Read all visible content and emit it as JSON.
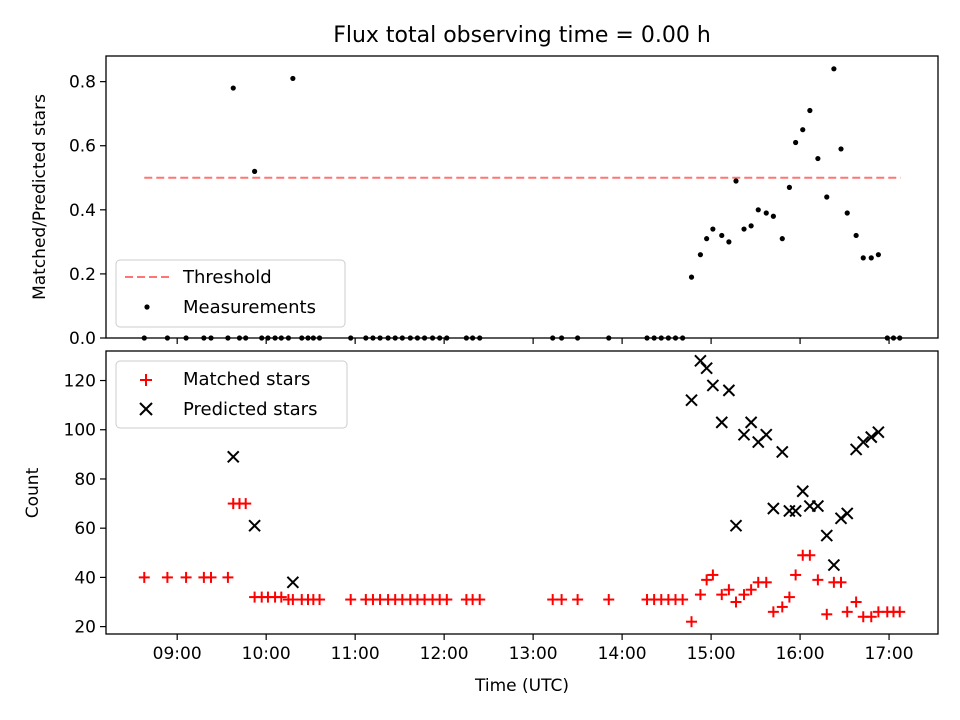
{
  "chart_data": [
    {
      "type": "scatter",
      "title": "Flux total observing time = 0.00 h",
      "xlabel": "",
      "ylabel": "Matched/Predicted stars",
      "xlim": [
        8.2,
        17.55
      ],
      "ylim": [
        0,
        0.88
      ],
      "x_unit": "hours UTC",
      "yticks": [
        0.0,
        0.2,
        0.4,
        0.6,
        0.8
      ],
      "ytick_labels": [
        "0.0",
        "0.2",
        "0.4",
        "0.6",
        "0.8"
      ],
      "xticks": [
        9,
        10,
        11,
        12,
        13,
        14,
        15,
        16,
        17
      ],
      "xtick_labels_shown": false,
      "legend_position": "lower-left",
      "threshold": {
        "name": "Threshold",
        "value": 0.5,
        "x": [
          8.63,
          17.13
        ],
        "color": "#ff7575",
        "style": "dashed"
      },
      "series": [
        {
          "name": "Measurements",
          "color": "#000000",
          "marker": "dot",
          "x": [
            8.63,
            8.89,
            9.1,
            9.3,
            9.38,
            9.57,
            9.63,
            9.7,
            9.77,
            9.87,
            9.95,
            10.02,
            10.1,
            10.17,
            10.25,
            10.3,
            10.4,
            10.47,
            10.53,
            10.6,
            10.95,
            11.12,
            11.2,
            11.28,
            11.37,
            11.45,
            11.53,
            11.62,
            11.7,
            11.78,
            11.87,
            11.95,
            12.03,
            12.25,
            12.32,
            12.4,
            13.22,
            13.32,
            13.5,
            13.85,
            14.28,
            14.36,
            14.44,
            14.52,
            14.6,
            14.68,
            14.78,
            14.88,
            14.95,
            15.02,
            15.12,
            15.2,
            15.28,
            15.37,
            15.45,
            15.53,
            15.62,
            15.7,
            15.8,
            15.88,
            15.95,
            16.03,
            16.11,
            16.2,
            16.3,
            16.38,
            16.46,
            16.53,
            16.63,
            16.71,
            16.8,
            16.88,
            16.98,
            17.05,
            17.12
          ],
          "y": [
            0,
            0,
            0,
            0,
            0,
            0,
            0.78,
            0,
            0,
            0.52,
            0,
            0,
            0,
            0,
            0,
            0.81,
            0,
            0,
            0,
            0,
            0,
            0,
            0,
            0,
            0,
            0,
            0,
            0,
            0,
            0,
            0,
            0,
            0,
            0,
            0,
            0,
            0,
            0,
            0,
            0,
            0,
            0,
            0,
            0,
            0,
            0,
            0.19,
            0.26,
            0.31,
            0.34,
            0.32,
            0.3,
            0.49,
            0.34,
            0.35,
            0.4,
            0.39,
            0.38,
            0.31,
            0.47,
            0.61,
            0.65,
            0.71,
            0.56,
            0.44,
            0.84,
            0.59,
            0.39,
            0.32,
            0.25,
            0.25,
            0.26,
            0,
            0,
            0
          ]
        }
      ]
    },
    {
      "type": "scatter",
      "title": "",
      "xlabel": "Time (UTC)",
      "ylabel": "Count",
      "xlim": [
        8.2,
        17.55
      ],
      "ylim": [
        17,
        132
      ],
      "x_unit": "hours UTC",
      "yticks": [
        20,
        40,
        60,
        80,
        100,
        120
      ],
      "ytick_labels": [
        "20",
        "40",
        "60",
        "80",
        "100",
        "120"
      ],
      "xticks": [
        9,
        10,
        11,
        12,
        13,
        14,
        15,
        16,
        17
      ],
      "xtick_labels": [
        "09:00",
        "10:00",
        "11:00",
        "12:00",
        "13:00",
        "14:00",
        "15:00",
        "16:00",
        "17:00"
      ],
      "legend_position": "upper-left",
      "series": [
        {
          "name": "Matched stars",
          "color": "#ff0000",
          "marker": "plus",
          "x": [
            8.63,
            8.89,
            9.1,
            9.3,
            9.38,
            9.57,
            9.63,
            9.7,
            9.77,
            9.87,
            9.95,
            10.02,
            10.1,
            10.17,
            10.25,
            10.3,
            10.4,
            10.47,
            10.53,
            10.6,
            10.95,
            11.12,
            11.2,
            11.28,
            11.37,
            11.45,
            11.53,
            11.62,
            11.7,
            11.78,
            11.87,
            11.95,
            12.03,
            12.25,
            12.32,
            12.4,
            13.22,
            13.32,
            13.5,
            13.85,
            14.28,
            14.36,
            14.44,
            14.52,
            14.6,
            14.68,
            14.78,
            14.88,
            14.95,
            15.02,
            15.12,
            15.2,
            15.28,
            15.37,
            15.45,
            15.53,
            15.62,
            15.7,
            15.8,
            15.88,
            15.95,
            16.03,
            16.11,
            16.2,
            16.3,
            16.38,
            16.46,
            16.53,
            16.63,
            16.71,
            16.8,
            16.88,
            16.98,
            17.05,
            17.12
          ],
          "y": [
            40,
            40,
            40,
            40,
            40,
            40,
            70,
            70,
            70,
            32,
            32,
            32,
            32,
            32,
            31,
            31,
            31,
            31,
            31,
            31,
            31,
            31,
            31,
            31,
            31,
            31,
            31,
            31,
            31,
            31,
            31,
            31,
            31,
            31,
            31,
            31,
            31,
            31,
            31,
            31,
            31,
            31,
            31,
            31,
            31,
            31,
            22,
            33,
            39,
            41,
            33,
            35,
            30,
            33,
            35,
            38,
            38,
            26,
            28,
            32,
            41,
            49,
            49,
            39,
            25,
            38,
            38,
            26,
            30,
            24,
            24,
            26,
            26,
            26,
            26
          ]
        },
        {
          "name": "Predicted stars",
          "color": "#000000",
          "marker": "x",
          "x": [
            9.63,
            9.87,
            10.3,
            14.78,
            14.88,
            14.95,
            15.02,
            15.12,
            15.2,
            15.28,
            15.37,
            15.45,
            15.53,
            15.62,
            15.7,
            15.8,
            15.88,
            15.95,
            16.03,
            16.11,
            16.2,
            16.3,
            16.38,
            16.46,
            16.53,
            16.63,
            16.71,
            16.8,
            16.88
          ],
          "y": [
            89,
            61,
            38,
            112,
            128,
            125,
            118,
            103,
            116,
            61,
            98,
            103,
            95,
            98,
            68,
            91,
            67,
            67,
            75,
            69,
            69,
            57,
            45,
            64,
            66,
            92,
            95,
            97,
            99
          ]
        }
      ]
    }
  ]
}
